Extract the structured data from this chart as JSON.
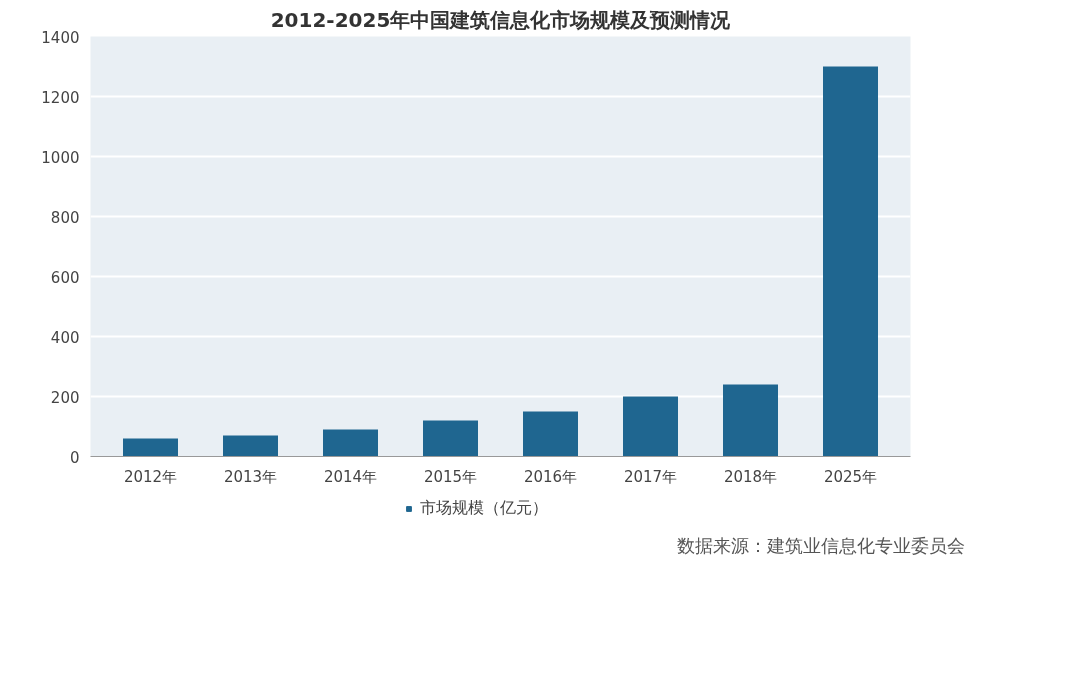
{
  "chart_data": {
    "type": "bar",
    "title": "2012-2025年中国建筑信息化市场规模及预测情况",
    "categories": [
      "2012年",
      "2013年",
      "2014年",
      "2015年",
      "2016年",
      "2017年",
      "2018年",
      "2025年"
    ],
    "series": [
      {
        "name": "市场规模（亿元）",
        "color": "#1f6690",
        "values": [
          60,
          70,
          90,
          120,
          150,
          200,
          240,
          1300
        ]
      }
    ],
    "ylim": [
      0,
      1400
    ],
    "yticks": [
      0,
      200,
      400,
      600,
      800,
      1000,
      1200,
      1400
    ],
    "grid": "y",
    "legend": "bottom",
    "annotations": [
      "数据来源：建筑业信息化专业委员会"
    ]
  }
}
